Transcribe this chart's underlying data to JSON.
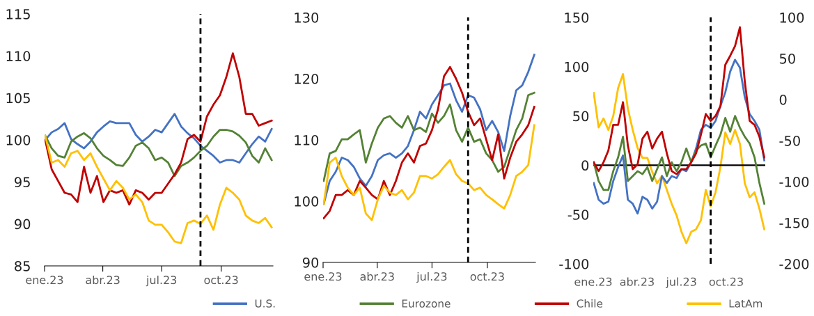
{
  "chart_data": [
    {
      "type": "line",
      "x": [
        "2023-01-02",
        "2023-01-12",
        "2023-01-22",
        "2023-02-01",
        "2023-02-11",
        "2023-02-21",
        "2023-03-03",
        "2023-03-13",
        "2023-03-23",
        "2023-04-02",
        "2023-04-12",
        "2023-04-22",
        "2023-05-02",
        "2023-05-12",
        "2023-05-22",
        "2023-06-01",
        "2023-06-11",
        "2023-06-21",
        "2023-07-01",
        "2023-07-11",
        "2023-07-21",
        "2023-07-31",
        "2023-08-10",
        "2023-08-20",
        "2023-08-30",
        "2023-09-09",
        "2023-09-19",
        "2023-09-29",
        "2023-10-09",
        "2023-10-19",
        "2023-10-29",
        "2023-11-08",
        "2023-11-18",
        "2023-11-28",
        "2023-12-08",
        "2023-12-18"
      ],
      "series": [
        {
          "name": "U.S.",
          "color": "#4472c4",
          "values": [
            100,
            100.9,
            101.3,
            102,
            100.1,
            99.5,
            99,
            99.8,
            100.9,
            101.6,
            102.2,
            102,
            102,
            102,
            100.6,
            99.8,
            100.4,
            101.2,
            100.9,
            102,
            103.1,
            101.6,
            100.8,
            100.2,
            99.3,
            98.7,
            98.1,
            97.3,
            97.6,
            97.6,
            97.3,
            98.4,
            99.5,
            100.4,
            99.8,
            101.3
          ]
        },
        {
          "name": "Eurozone",
          "color": "#548235",
          "values": [
            100.5,
            99,
            98.1,
            97.9,
            99.8,
            100.4,
            100.8,
            100.2,
            99,
            98.1,
            97.6,
            97,
            96.9,
            97.9,
            99.3,
            99.7,
            99,
            97.6,
            97.9,
            97.3,
            95.7,
            96.9,
            97.3,
            97.9,
            98.7,
            99.3,
            100.4,
            101.2,
            101.2,
            101,
            100.5,
            99.7,
            98.1,
            97.3,
            99,
            97.6
          ]
        },
        {
          "name": "Chile",
          "color": "#c00000",
          "values": [
            100,
            96.5,
            95.1,
            93.7,
            93.5,
            92.6,
            96.8,
            93.7,
            95.7,
            92.6,
            94,
            93.7,
            94,
            92.3,
            94,
            93.7,
            92.9,
            93.7,
            93.7,
            94.8,
            95.9,
            97.3,
            100.1,
            100.6,
            99.8,
            102.8,
            104.2,
            105.3,
            107.5,
            110.3,
            107.5,
            103.1,
            103.1,
            101.7,
            102,
            102.3
          ]
        },
        {
          "name": "LatAm",
          "color": "#ffc000",
          "values": [
            100.5,
            97.3,
            97.6,
            96.8,
            98.4,
            98.7,
            97.6,
            98.4,
            96.8,
            95.4,
            94,
            95.1,
            94.3,
            92.9,
            93.5,
            92.6,
            90.4,
            89.9,
            89.9,
            89,
            87.9,
            87.7,
            90.1,
            90.4,
            90,
            91,
            89.3,
            92.3,
            94.3,
            93.7,
            92.9,
            91,
            90.4,
            90.1,
            90.7,
            89.6
          ]
        }
      ],
      "xlim": [
        "2023-01-01",
        "2023-12-20"
      ],
      "xticks": [
        {
          "value": "2023-01-01",
          "label": "ene.23"
        },
        {
          "value": "2023-04-01",
          "label": "abr.23"
        },
        {
          "value": "2023-07-01",
          "label": "jul.23"
        },
        {
          "value": "2023-10-01",
          "label": "oct.23"
        }
      ],
      "ylim": [
        85,
        115
      ],
      "yticks": [
        85,
        90,
        95,
        100,
        105,
        110,
        115
      ],
      "ref_lines": [
        {
          "axis": "x",
          "value": "2023-08-30",
          "color": "#000000",
          "line_style": "dashed"
        }
      ],
      "grid": false,
      "legend": "bottom"
    },
    {
      "type": "line",
      "x": [
        "2023-01-02",
        "2023-01-12",
        "2023-01-22",
        "2023-02-01",
        "2023-02-11",
        "2023-02-21",
        "2023-03-03",
        "2023-03-13",
        "2023-03-23",
        "2023-04-02",
        "2023-04-12",
        "2023-04-22",
        "2023-05-02",
        "2023-05-12",
        "2023-05-22",
        "2023-06-01",
        "2023-06-11",
        "2023-06-21",
        "2023-07-01",
        "2023-07-11",
        "2023-07-21",
        "2023-07-31",
        "2023-08-10",
        "2023-08-20",
        "2023-08-30",
        "2023-09-09",
        "2023-09-19",
        "2023-09-29",
        "2023-10-09",
        "2023-10-19",
        "2023-10-29",
        "2023-11-08",
        "2023-11-18",
        "2023-11-28",
        "2023-12-08",
        "2023-12-18"
      ],
      "series": [
        {
          "color": "#4472c4",
          "values": [
            99.5,
            103.3,
            104.8,
            107.1,
            106.7,
            105.6,
            103.7,
            102.5,
            104.1,
            106.7,
            107.5,
            107.8,
            107.1,
            107.8,
            109,
            111.6,
            114.6,
            113.5,
            115.8,
            117.3,
            118.9,
            119.2,
            116.5,
            114.6,
            117.3,
            116.9,
            115,
            111.6,
            113.1,
            111.3,
            108.2,
            113.9,
            118.1,
            118.9,
            121.1,
            123.9
          ]
        },
        {
          "color": "#548235",
          "values": [
            103.3,
            107.8,
            108.2,
            110.1,
            110.1,
            110.9,
            111.6,
            106.3,
            109.4,
            112,
            113.5,
            113.9,
            112.8,
            112,
            113.9,
            111.6,
            112,
            111.3,
            114.3,
            112.8,
            113.9,
            115.8,
            111.6,
            109.7,
            112,
            109.7,
            110.1,
            107.8,
            106.7,
            104.8,
            105.6,
            108.6,
            111.6,
            113.5,
            117.3,
            117.7
          ]
        },
        {
          "color": "#c00000",
          "values": [
            97.2,
            98.4,
            101,
            101,
            101.8,
            101,
            103.3,
            102.2,
            101,
            100.3,
            103.3,
            101,
            103.3,
            106.3,
            107.8,
            106.3,
            109,
            109.4,
            111.6,
            115,
            120.4,
            121.9,
            120,
            117.7,
            114.6,
            112.4,
            113.5,
            110.1,
            106.7,
            110.9,
            103.7,
            107.1,
            109.7,
            110.9,
            112.4,
            115.4
          ]
        },
        {
          "color": "#ffc000",
          "values": [
            99.5,
            106.3,
            107.1,
            104.1,
            102.2,
            101,
            102.2,
            98,
            96.9,
            100.3,
            102.5,
            101.4,
            101,
            101.8,
            100.3,
            101.4,
            104.1,
            104.1,
            103.7,
            104.4,
            105.6,
            106.7,
            104.4,
            103.3,
            102.9,
            101.8,
            102.2,
            101,
            100.3,
            99.5,
            98.8,
            101,
            104.1,
            104.8,
            105.9,
            112.4
          ]
        }
      ],
      "xlim": [
        "2023-01-01",
        "2023-12-20"
      ],
      "xticks": [
        {
          "value": "2023-01-01",
          "label": "ene.23"
        },
        {
          "value": "2023-04-01",
          "label": "abr.23"
        },
        {
          "value": "2023-07-01",
          "label": "jul.23"
        },
        {
          "value": "2023-10-01",
          "label": "oct.23"
        }
      ],
      "ylim": [
        90,
        130
      ],
      "yticks": [
        90,
        100,
        110,
        120,
        130
      ],
      "ref_lines": [
        {
          "axis": "x",
          "value": "2023-08-30",
          "color": "#000000",
          "line_style": "dashed"
        }
      ],
      "grid": false
    },
    {
      "type": "line",
      "x": [
        "2023-01-02",
        "2023-01-12",
        "2023-01-22",
        "2023-02-01",
        "2023-02-11",
        "2023-02-21",
        "2023-03-03",
        "2023-03-13",
        "2023-03-23",
        "2023-04-02",
        "2023-04-12",
        "2023-04-22",
        "2023-05-02",
        "2023-05-12",
        "2023-05-22",
        "2023-06-01",
        "2023-06-11",
        "2023-06-21",
        "2023-07-01",
        "2023-07-11",
        "2023-07-21",
        "2023-07-31",
        "2023-08-10",
        "2023-08-20",
        "2023-08-30",
        "2023-09-09",
        "2023-09-19",
        "2023-09-29",
        "2023-10-09",
        "2023-10-19",
        "2023-10-29",
        "2023-11-08",
        "2023-11-18",
        "2023-11-28",
        "2023-12-08",
        "2023-12-18"
      ],
      "series": [
        {
          "color": "#4472c4",
          "values": [
            -18,
            -35,
            -39,
            -37,
            -16,
            -2,
            10,
            -35,
            -39,
            -49,
            -32,
            -35,
            -44,
            -37,
            -11,
            -18,
            -11,
            -13,
            -4,
            -6,
            3,
            17,
            36,
            41,
            38,
            45,
            60,
            74,
            95,
            107,
            99,
            69,
            52,
            45,
            36,
            5
          ]
        },
        {
          "color": "#548235",
          "values": [
            3,
            -16,
            -25,
            -25,
            -6,
            8,
            29,
            -16,
            -11,
            -6,
            -9,
            -2,
            -16,
            -4,
            8,
            -11,
            3,
            -6,
            3,
            17,
            3,
            15,
            20,
            22,
            8,
            20,
            31,
            48,
            34,
            50,
            38,
            29,
            22,
            8,
            -18,
            -39
          ]
        },
        {
          "color": "#c00000",
          "values": [
            3,
            -6,
            3,
            15,
            41,
            41,
            64,
            20,
            -4,
            1,
            27,
            34,
            17,
            27,
            34,
            12,
            -6,
            -9,
            -4,
            -4,
            3,
            12,
            31,
            52,
            45,
            50,
            60,
            102,
            111,
            121,
            140,
            85,
            45,
            41,
            29,
            8
          ]
        },
        {
          "color": "#ffc000",
          "axis": "y2",
          "values": [
            8,
            -34,
            -23,
            -37,
            -20,
            14,
            31,
            -11,
            -37,
            -59,
            -71,
            -71,
            -88,
            -102,
            -93,
            -110,
            -127,
            -141,
            -161,
            -175,
            -161,
            -158,
            -147,
            -110,
            -130,
            -113,
            -82,
            -40,
            -54,
            -37,
            -54,
            -102,
            -119,
            -113,
            -133,
            -158
          ]
        }
      ],
      "xlim": [
        "2023-01-01",
        "2023-12-20"
      ],
      "xticks": [
        {
          "value": "2023-01-01",
          "label": "ene.23"
        },
        {
          "value": "2023-04-01",
          "label": "abr.23"
        },
        {
          "value": "2023-07-01",
          "label": "jul.23"
        },
        {
          "value": "2023-10-01",
          "label": "oct.23"
        }
      ],
      "ylim": [
        -100,
        150
      ],
      "yticks": [
        -100,
        -50,
        0,
        50,
        100,
        150
      ],
      "y2lim": [
        -200,
        100
      ],
      "y2ticks": [
        -200,
        -150,
        -100,
        -50,
        0,
        50,
        100
      ],
      "ref_lines": [
        {
          "axis": "y",
          "value": 0,
          "color": "#000000",
          "line_style": "solid"
        },
        {
          "axis": "x",
          "value": "2023-08-30",
          "color": "#000000",
          "line_style": "dashed"
        }
      ],
      "grid": false
    }
  ]
}
